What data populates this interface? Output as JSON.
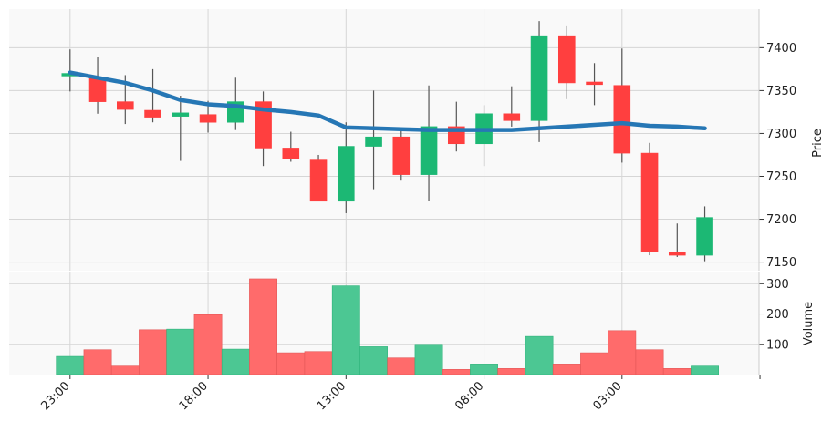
{
  "chart_data": [
    {
      "type": "candlestick",
      "panel": "price",
      "ylabel": "Price",
      "ylim": [
        7140,
        7445
      ],
      "yticks": [
        7150,
        7200,
        7250,
        7300,
        7350,
        7400
      ],
      "xticks": [
        "23:00",
        "18:00",
        "13:00",
        "08:00",
        "03:00"
      ],
      "grid": true,
      "colors": {
        "up": "#1cb874",
        "down": "#ff3f3f",
        "wick": "#555555",
        "ma": "#2677b5",
        "panel_bg": "#f9f9f9",
        "grid": "#d6d6d6"
      },
      "candles": [
        {
          "open": 7367,
          "close": 7370,
          "high": 7398,
          "low": 7349
        },
        {
          "open": 7364,
          "close": 7337,
          "high": 7389,
          "low": 7323
        },
        {
          "open": 7337,
          "close": 7328,
          "high": 7368,
          "low": 7311
        },
        {
          "open": 7327,
          "close": 7319,
          "high": 7375,
          "low": 7313
        },
        {
          "open": 7320,
          "close": 7324,
          "high": 7344,
          "low": 7268
        },
        {
          "open": 7322,
          "close": 7313,
          "high": 7338,
          "low": 7301
        },
        {
          "open": 7313,
          "close": 7337,
          "high": 7365,
          "low": 7304
        },
        {
          "open": 7337,
          "close": 7283,
          "high": 7349,
          "low": 7262
        },
        {
          "open": 7283,
          "close": 7270,
          "high": 7302,
          "low": 7267
        },
        {
          "open": 7269,
          "close": 7221,
          "high": 7275,
          "low": 7221
        },
        {
          "open": 7221,
          "close": 7285,
          "high": 7313,
          "low": 7207
        },
        {
          "open": 7285,
          "close": 7296,
          "high": 7350,
          "low": 7235
        },
        {
          "open": 7296,
          "close": 7252,
          "high": 7304,
          "low": 7245
        },
        {
          "open": 7252,
          "close": 7308,
          "high": 7356,
          "low": 7221
        },
        {
          "open": 7308,
          "close": 7288,
          "high": 7337,
          "low": 7279
        },
        {
          "open": 7288,
          "close": 7323,
          "high": 7333,
          "low": 7262
        },
        {
          "open": 7323,
          "close": 7315,
          "high": 7355,
          "low": 7308
        },
        {
          "open": 7315,
          "close": 7414,
          "high": 7431,
          "low": 7290
        },
        {
          "open": 7414,
          "close": 7359,
          "high": 7426,
          "low": 7340
        },
        {
          "open": 7360,
          "close": 7357,
          "high": 7382,
          "low": 7333
        },
        {
          "open": 7356,
          "close": 7277,
          "high": 7399,
          "low": 7266
        },
        {
          "open": 7277,
          "close": 7162,
          "high": 7289,
          "low": 7158
        },
        {
          "open": 7162,
          "close": 7158,
          "high": 7195,
          "low": 7156
        },
        {
          "open": 7158,
          "close": 7202,
          "high": 7215,
          "low": 7151
        }
      ],
      "moving_average": [
        7371,
        7365,
        7359,
        7350,
        7339,
        7334,
        7332,
        7328,
        7325,
        7321,
        7307,
        7306,
        7305,
        7304,
        7304,
        7304,
        7304,
        7306,
        7308,
        7310,
        7312,
        7309,
        7308,
        7306
      ]
    },
    {
      "type": "bar",
      "panel": "volume",
      "ylabel": "Volume",
      "ylim": [
        0,
        340
      ],
      "yticks": [
        100,
        200,
        300
      ],
      "values": [
        60,
        82,
        28,
        148,
        150,
        198,
        84,
        316,
        72,
        76,
        293,
        92,
        55,
        100,
        17,
        35,
        20,
        126,
        35,
        72,
        145,
        82,
        20,
        28
      ]
    }
  ]
}
